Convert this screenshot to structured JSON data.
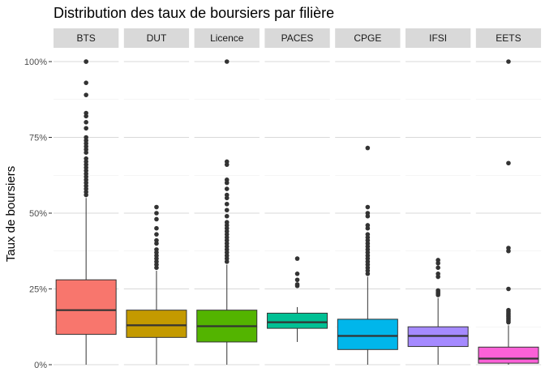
{
  "chart_data": {
    "type": "boxplot",
    "title": "Distribution des taux de boursiers par filière",
    "ylabel": "Taux de boursiers",
    "xlabel": "",
    "ylim": [
      0,
      1
    ],
    "yticks": [
      0,
      0.25,
      0.5,
      0.75,
      1.0
    ],
    "ytick_labels": [
      "0%",
      "25%",
      "50%",
      "75%",
      "100%"
    ],
    "grid": true,
    "legend": "none",
    "panels": [
      {
        "name": "BTS",
        "color": "#F8766D",
        "q1": 0.1,
        "median": 0.18,
        "q3": 0.28,
        "whisker_low": 0.0,
        "whisker_high": 0.55,
        "outliers": [
          1.0,
          1.0,
          0.93,
          0.89,
          0.83,
          0.82,
          0.8,
          0.78,
          0.75,
          0.74,
          0.73,
          0.72,
          0.71,
          0.7,
          0.68,
          0.67,
          0.66,
          0.65,
          0.64,
          0.63,
          0.62,
          0.61,
          0.6,
          0.59,
          0.58,
          0.57,
          0.56
        ]
      },
      {
        "name": "DUT",
        "color": "#C49A00",
        "q1": 0.09,
        "median": 0.13,
        "q3": 0.18,
        "whisker_low": 0.0,
        "whisker_high": 0.31,
        "outliers": [
          0.52,
          0.5,
          0.48,
          0.45,
          0.43,
          0.41,
          0.4,
          0.38,
          0.37,
          0.36,
          0.35,
          0.34,
          0.33,
          0.32
        ]
      },
      {
        "name": "Licence",
        "color": "#53B400",
        "q1": 0.075,
        "median": 0.127,
        "q3": 0.18,
        "whisker_low": 0.0,
        "whisker_high": 0.33,
        "outliers": [
          1.0,
          0.67,
          0.66,
          0.61,
          0.6,
          0.58,
          0.56,
          0.55,
          0.53,
          0.51,
          0.49,
          0.47,
          0.46,
          0.45,
          0.44,
          0.43,
          0.42,
          0.41,
          0.4,
          0.39,
          0.38,
          0.37,
          0.36,
          0.35,
          0.34
        ]
      },
      {
        "name": "PACES",
        "color": "#00C094",
        "q1": 0.12,
        "median": 0.14,
        "q3": 0.17,
        "whisker_low": 0.075,
        "whisker_high": 0.19,
        "outliers": [
          0.35,
          0.3,
          0.28,
          0.265,
          0.26
        ]
      },
      {
        "name": "CPGE",
        "color": "#00B6EB",
        "q1": 0.05,
        "median": 0.095,
        "q3": 0.15,
        "whisker_low": 0.0,
        "whisker_high": 0.29,
        "outliers": [
          0.715,
          0.52,
          0.5,
          0.49,
          0.46,
          0.45,
          0.43,
          0.42,
          0.41,
          0.4,
          0.39,
          0.38,
          0.37,
          0.36,
          0.35,
          0.34,
          0.33,
          0.32,
          0.31,
          0.3
        ]
      },
      {
        "name": "IFSI",
        "color": "#A58AFF",
        "q1": 0.06,
        "median": 0.095,
        "q3": 0.125,
        "whisker_low": 0.0,
        "whisker_high": 0.22,
        "outliers": [
          0.345,
          0.335,
          0.32,
          0.3,
          0.29,
          0.245,
          0.24,
          0.235,
          0.23
        ]
      },
      {
        "name": "EETS",
        "color": "#FB61D7",
        "q1": 0.005,
        "median": 0.02,
        "q3": 0.058,
        "whisker_low": 0.0,
        "whisker_high": 0.13,
        "outliers": [
          1.0,
          0.665,
          0.385,
          0.375,
          0.25,
          0.18,
          0.175,
          0.17,
          0.165,
          0.16,
          0.155,
          0.15,
          0.145,
          0.14
        ]
      }
    ]
  }
}
